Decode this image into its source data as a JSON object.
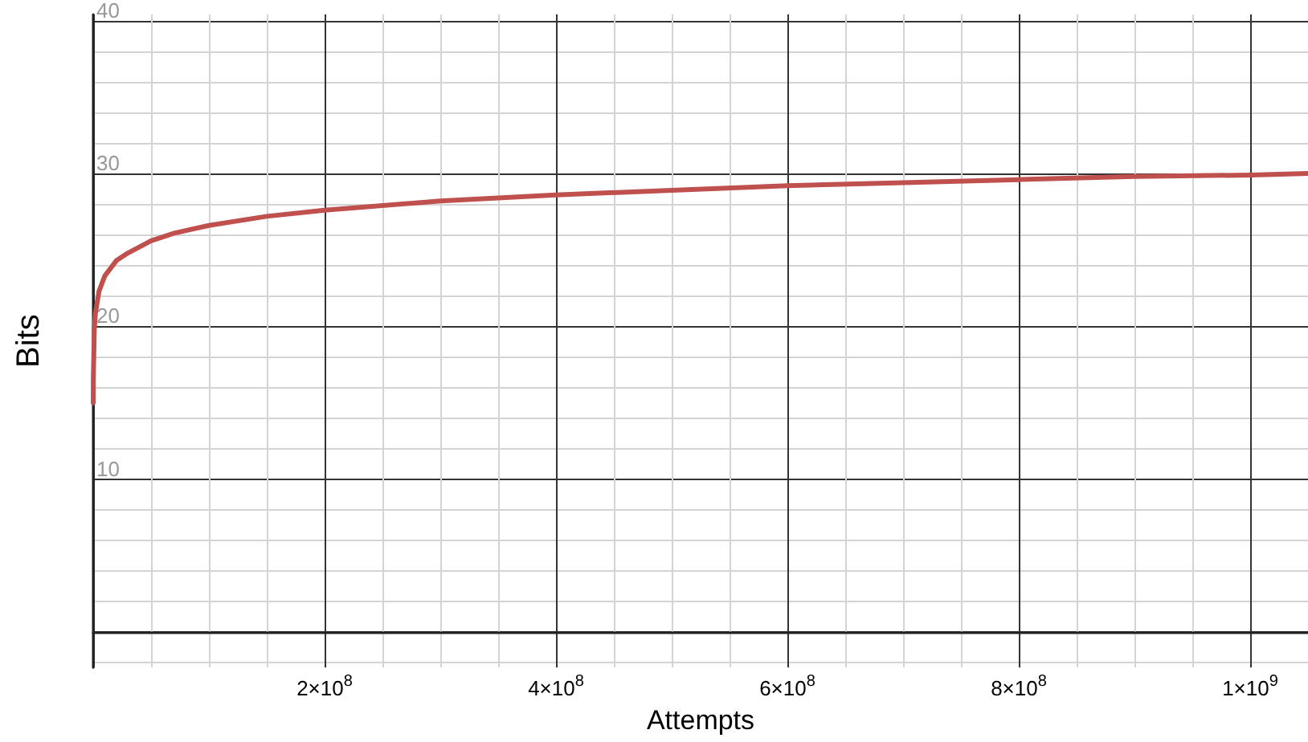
{
  "chart_data": {
    "type": "line",
    "xlabel": "Attempts",
    "ylabel": "Bits",
    "x": [
      33000,
      100000,
      1000000,
      2000000,
      5000000,
      10000000,
      20000000,
      30000000,
      50000000,
      70000000,
      100000000,
      150000000,
      200000000,
      300000000,
      400000000,
      500000000,
      600000000,
      700000000,
      800000000,
      900000000,
      1000000000,
      1050000000
    ],
    "series": [
      {
        "color": "#c0504d",
        "values": [
          15.0,
          16.6,
          19.9,
          20.9,
          22.3,
          23.3,
          24.3,
          24.8,
          25.6,
          26.1,
          26.6,
          27.2,
          27.6,
          28.2,
          28.6,
          28.9,
          29.2,
          29.4,
          29.6,
          29.8,
          29.9,
          30.0
        ]
      }
    ],
    "xlim": [
      0,
      1050000000
    ],
    "ylim": [
      -2.3,
      40.4
    ],
    "xticks": [
      {
        "value": 0,
        "label": null
      },
      {
        "value": 200000000,
        "label": "2×10$^{8}$"
      },
      {
        "value": 400000000,
        "label": "4×10$^{8}$"
      },
      {
        "value": 600000000,
        "label": "6×10$^{8}$"
      },
      {
        "value": 800000000,
        "label": "8×10$^{8}$"
      },
      {
        "value": 1000000000,
        "label": "1×10$^{9}$"
      }
    ],
    "yticks": [
      {
        "value": 0,
        "label": null
      },
      10,
      20,
      30,
      40
    ],
    "grid": true,
    "marker": "none",
    "line_style": "solid"
  }
}
